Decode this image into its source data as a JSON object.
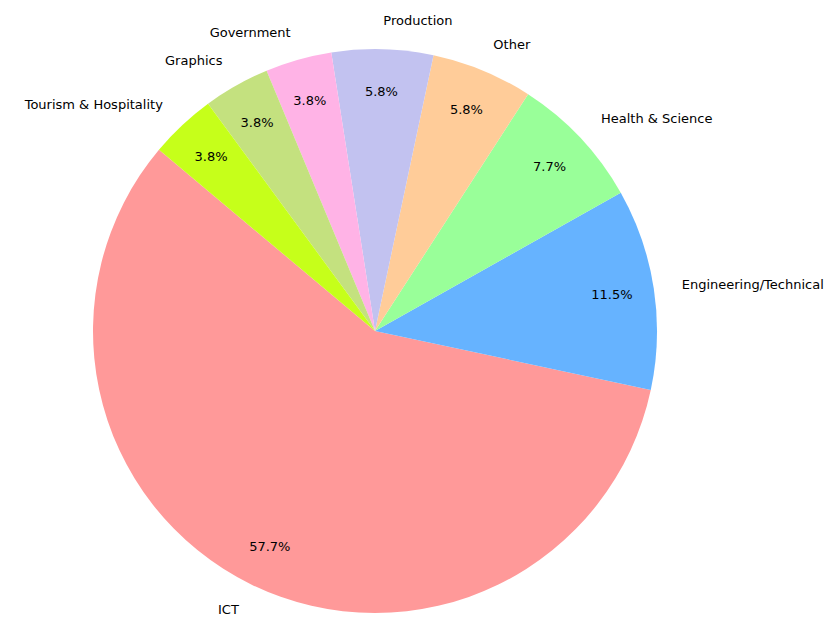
{
  "chart_data": {
    "type": "pie",
    "categories": [
      "ICT",
      "Engineering/Technical",
      "Health & Science",
      "Other",
      "Production",
      "Government",
      "Graphics",
      "Tourism & Hospitality"
    ],
    "values": [
      57.7,
      11.5,
      7.7,
      5.8,
      5.8,
      3.8,
      3.8,
      3.8
    ],
    "value_labels": [
      "57.7%",
      "11.5%",
      "7.7%",
      "5.8%",
      "5.8%",
      "3.8%",
      "3.8%",
      "3.8%"
    ],
    "colors": [
      "#ff9999",
      "#66b3ff",
      "#99ff99",
      "#ffcc99",
      "#c2c2f0",
      "#ffb3e6",
      "#c4e17f",
      "#c6ff1a"
    ],
    "data_labels": true
  }
}
